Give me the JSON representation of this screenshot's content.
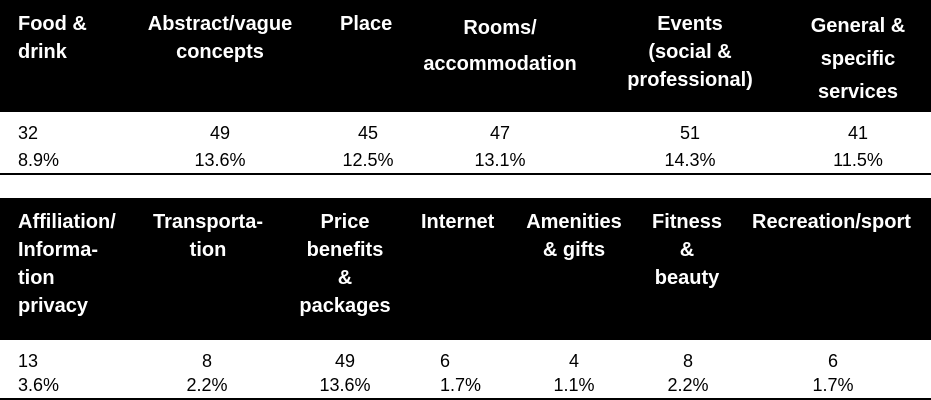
{
  "table1": {
    "headers": [
      "Food &\ndrink",
      "Abstract/vague\nconcepts",
      "Place",
      "Rooms/\naccommodation",
      "Events\n(social &\nprofessional)",
      "General &\nspecific\nservices"
    ],
    "counts": [
      "32",
      "49",
      "45",
      "47",
      "51",
      "41"
    ],
    "percents": [
      "8.9%",
      "13.6%",
      "12.5%",
      "13.1%",
      "14.3%",
      "11.5%"
    ]
  },
  "table2": {
    "headers": [
      "Affiliation/\nInforma-\ntion\nprivacy",
      "Transporta-\ntion",
      "Price\nbenefits\n&\npackages",
      "Internet",
      "Amenities\n& gifts",
      "Fitness\n&\nbeauty",
      "Recreation/sport"
    ],
    "counts": [
      "13",
      "8",
      "49",
      "6",
      "4",
      "8",
      "6"
    ],
    "percents": [
      "3.6%",
      "2.2%",
      "13.6%",
      "1.7%",
      "1.1%",
      "2.2%",
      "1.7%"
    ]
  },
  "colors": {
    "header_bg": "#000000",
    "header_text": "#ffffff",
    "body_text": "#000000"
  }
}
